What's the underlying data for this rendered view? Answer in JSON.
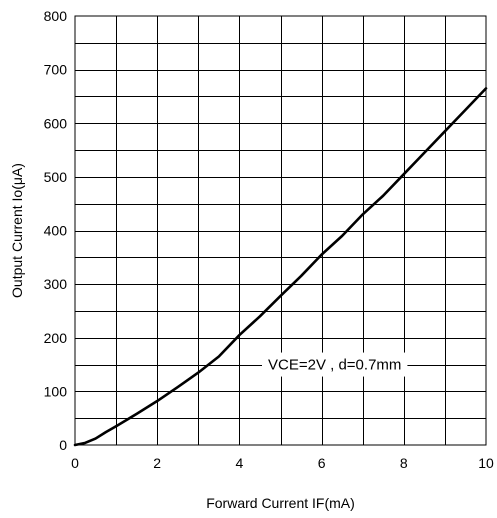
{
  "chart_data": {
    "type": "line",
    "title": "",
    "xlabel": "Forward Current IF(mA)",
    "ylabel": "Output Current Io(μA)",
    "xlim": [
      0,
      10
    ],
    "ylim": [
      0,
      800
    ],
    "x_ticks": [
      0,
      2,
      4,
      6,
      8,
      10
    ],
    "y_ticks": [
      0,
      100,
      200,
      300,
      400,
      500,
      600,
      700,
      800
    ],
    "x_tick_labels": [
      "0",
      "2",
      "4",
      "6",
      "8",
      "10"
    ],
    "y_tick_labels": [
      "0",
      "100",
      "200",
      "300",
      "400",
      "500",
      "600",
      "700",
      "800"
    ],
    "x_grid_step": 1,
    "y_grid_step": 50,
    "grid": true,
    "annotation": "VCE=2V , d=0.7mm",
    "series": [
      {
        "x": [
          0,
          0.25,
          0.5,
          0.75,
          1,
          1.5,
          2,
          2.5,
          3,
          3.5,
          4,
          4.5,
          5,
          5.5,
          6,
          6.5,
          7,
          7.5,
          8,
          8.5,
          9,
          9.5,
          10
        ],
        "y": [
          0,
          4,
          12,
          24,
          35,
          58,
          82,
          108,
          135,
          165,
          205,
          240,
          278,
          315,
          355,
          390,
          430,
          465,
          505,
          545,
          585,
          625,
          665
        ]
      }
    ]
  }
}
